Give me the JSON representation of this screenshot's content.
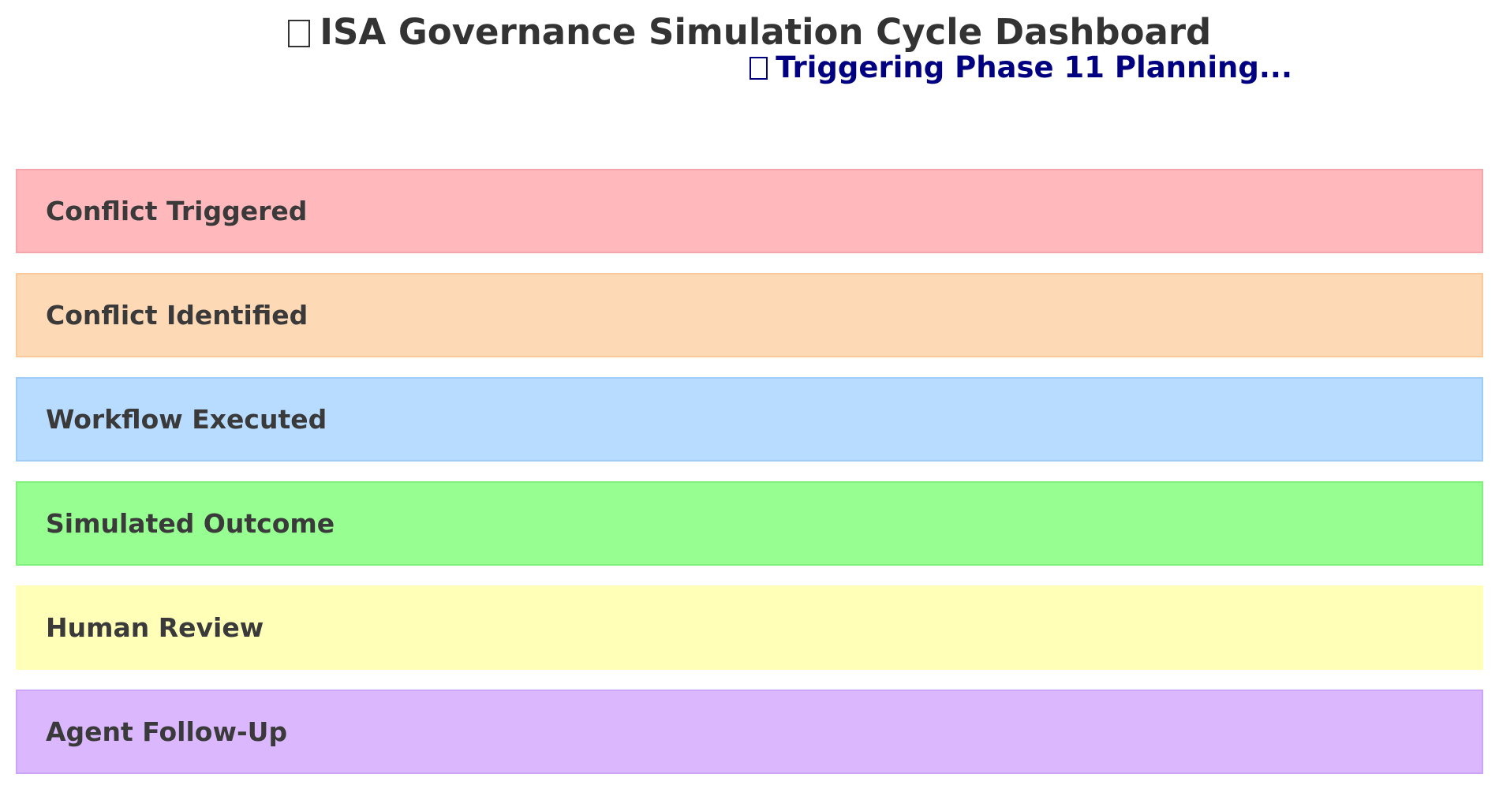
{
  "header": {
    "title": "ISA Governance Simulation Cycle Dashboard",
    "title_icon": "missing-glyph-icon",
    "status": "Triggering Phase 11 Planning...",
    "status_icon": "missing-glyph-icon",
    "status_color": "#000080"
  },
  "stages": [
    {
      "label": "Conflict Triggered",
      "fill": "#ffb6b9",
      "border": "#f5a3a7"
    },
    {
      "label": "Conflict Identified",
      "fill": "#fed8b4",
      "border": "#fcc896"
    },
    {
      "label": "Workflow Executed",
      "fill": "#b6dbff",
      "border": "#9ccbf7"
    },
    {
      "label": "Simulated Outcome",
      "fill": "#93fe8e",
      "border": "#7cf077"
    },
    {
      "label": "Human Review",
      "fill": "#ffffb6",
      "border": "#ffffb6"
    },
    {
      "label": "Agent Follow-Up",
      "fill": "#dab6fe",
      "border": "#cda0fa"
    }
  ]
}
